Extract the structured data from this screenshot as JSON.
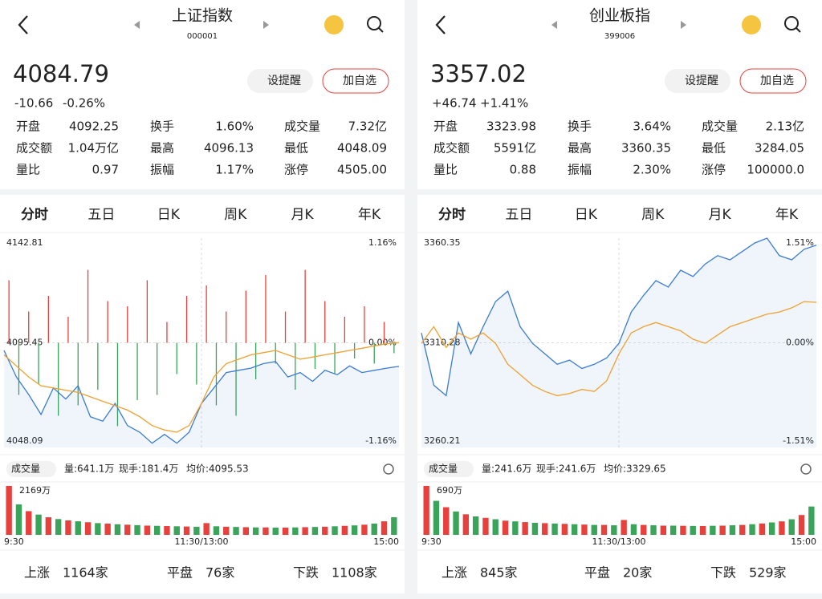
{
  "panels": [
    {
      "title": "上证指数",
      "code": "000001",
      "price": "4084.79",
      "change": "-10.66",
      "change_pct": "-0.26%",
      "trend_color": "#3aa55a",
      "buttons": [
        "设提醒",
        "加自选"
      ],
      "stats": [
        {
          "label": "开盘",
          "value": "4092.25",
          "color": "#3aa55a"
        },
        {
          "label": "换手",
          "value": "1.60%"
        },
        {
          "label": "成交量",
          "value": "7.32亿"
        },
        {
          "label": "成交额",
          "value": "1.04万亿"
        },
        {
          "label": "最高",
          "value": "4096.13",
          "color": "#e8413d"
        },
        {
          "label": "最低",
          "value": "4048.09",
          "color": "#3aa55a"
        },
        {
          "label": "量比",
          "value": "0.97"
        },
        {
          "label": "振幅",
          "value": "1.17%"
        },
        {
          "label": "涨停",
          "value": "4505.00",
          "color": "#e8413d"
        }
      ],
      "tabs": [
        "分时",
        "五日",
        "日K",
        "周K",
        "月K",
        "年K"
      ],
      "chart": {
        "type": "line",
        "ylim": [
          4048.09,
          4142.81
        ],
        "yticks": [
          4142.81,
          4095.45,
          4048.09
        ],
        "y2lim": [
          -1.16,
          1.16
        ],
        "y2ticks": [
          {
            "value": 1.16,
            "label": "1.16%"
          },
          {
            "value": 0,
            "label": "0.00%"
          },
          {
            "value": -1.16,
            "label": "-1.16%"
          }
        ],
        "series": [
          {
            "name": "价格",
            "color": "#3a7bd5",
            "values": [
              4092,
              4080,
              4072,
              4063,
              4075,
              4070,
              4076,
              4062,
              4060,
              4068,
              4058,
              4055,
              4050,
              4054,
              4050,
              4055,
              4068,
              4075,
              4082,
              4083,
              4084,
              4086,
              4087,
              4080,
              4082,
              4078,
              4083,
              4081,
              4085,
              4082,
              4083,
              4084,
              4084.79
            ]
          },
          {
            "name": "均价",
            "color": "#f0a030",
            "values": [
              4090,
              4085,
              4080,
              4076,
              4075,
              4074,
              4073,
              4071,
              4069,
              4067,
              4065,
              4062,
              4058,
              4056,
              4055,
              4058,
              4068,
              4080,
              4086,
              4088,
              4090,
              4091,
              4092,
              4090,
              4088,
              4089,
              4090,
              4091,
              4092,
              4093,
              4094,
              4095,
              4095.53
            ]
          }
        ],
        "breadth": {
          "lim": [
            -100,
            100
          ],
          "colors": [
            "#e8413d",
            "#3aa55a"
          ],
          "values": [
            60,
            -50,
            30,
            -40,
            45,
            -70,
            25,
            -60,
            70,
            -45,
            40,
            -80,
            35,
            -55,
            60,
            -50,
            20,
            -30,
            45,
            -40,
            55,
            -60,
            30,
            -70,
            50,
            -35,
            65,
            -20,
            30,
            -45,
            70,
            -25,
            40,
            -30,
            25,
            -15,
            35,
            -20,
            20,
            -10
          ]
        }
      },
      "volume_header": {
        "label": "成交量",
        "items": [
          "量:641.1万",
          "现手:181.4万",
          "均价:4095.53"
        ]
      },
      "volume": {
        "type": "bar",
        "label": "2169万",
        "ylim": [
          0,
          2169
        ],
        "bar_colors": [
          "#e8413d",
          "#3aa55a"
        ],
        "values": [
          2169,
          1350,
          1050,
          900,
          780,
          700,
          640,
          600,
          560,
          520,
          500,
          470,
          450,
          430,
          410,
          400,
          390,
          380,
          370,
          360,
          520,
          380,
          360,
          350,
          340,
          330,
          330,
          320,
          320,
          330,
          340,
          350,
          360,
          380,
          400,
          420,
          450,
          500,
          600,
          780
        ],
        "xlabels": [
          "9:30",
          "11:30/13:00",
          "15:00"
        ]
      },
      "counts": [
        {
          "label": "上涨",
          "value": "1164家",
          "color": "#e8413d"
        },
        {
          "label": "平盘",
          "value": "76家",
          "color": "#b8c4d0"
        },
        {
          "label": "下跌",
          "value": "1108家",
          "color": "#3aa55a"
        }
      ]
    },
    {
      "title": "创业板指",
      "code": "399006",
      "price": "3357.02",
      "change": "+46.74",
      "change_pct": "+1.41%",
      "trend_color": "#e8413d",
      "buttons": [
        "设提醒",
        "加自选"
      ],
      "stats": [
        {
          "label": "开盘",
          "value": "3323.98",
          "color": "#e8413d"
        },
        {
          "label": "换手",
          "value": "3.64%"
        },
        {
          "label": "成交量",
          "value": "2.13亿"
        },
        {
          "label": "成交额",
          "value": "5591亿"
        },
        {
          "label": "最高",
          "value": "3360.35",
          "color": "#e8413d"
        },
        {
          "label": "最低",
          "value": "3284.05",
          "color": "#3aa55a"
        },
        {
          "label": "量比",
          "value": "0.88"
        },
        {
          "label": "振幅",
          "value": "2.30%"
        },
        {
          "label": "涨停",
          "value": "100000.0",
          "color": "#e8413d"
        }
      ],
      "tabs": [
        "分时",
        "五日",
        "日K",
        "周K",
        "月K",
        "年K"
      ],
      "chart": {
        "type": "line",
        "ylim": [
          3260.21,
          3360.35
        ],
        "yticks": [
          3360.35,
          3310.28,
          3260.21
        ],
        "y2lim": [
          -1.51,
          1.51
        ],
        "y2ticks": [
          {
            "value": 1.51,
            "label": "1.51%"
          },
          {
            "value": 0,
            "label": "0.00%"
          },
          {
            "value": -1.51,
            "label": "-1.51%"
          }
        ],
        "series": [
          {
            "name": "价格",
            "color": "#3a7bd5",
            "values": [
              3315,
              3290,
              3285,
              3320,
              3305,
              3318,
              3330,
              3335,
              3318,
              3310,
              3305,
              3300,
              3302,
              3298,
              3300,
              3303,
              3310,
              3325,
              3333,
              3340,
              3337,
              3345,
              3342,
              3348,
              3352,
              3350,
              3354,
              3358,
              3360.35,
              3352,
              3350,
              3355,
              3357.02
            ]
          },
          {
            "name": "均价",
            "color": "#f0a030",
            "values": [
              3310,
              3318,
              3308,
              3315,
              3312,
              3315,
              3310,
              3300,
              3295,
              3290,
              3287,
              3285,
              3286,
              3288,
              3287,
              3292,
              3305,
              3315,
              3318,
              3320,
              3318,
              3316,
              3312,
              3310,
              3314,
              3318,
              3320,
              3322,
              3324,
              3325,
              3327,
              3330,
              3329.65
            ]
          }
        ]
      },
      "volume_header": {
        "label": "成交量",
        "items": [
          "量:241.6万",
          "现手:241.6万",
          "均价:3329.65"
        ]
      },
      "volume": {
        "type": "bar",
        "label": "690万",
        "ylim": [
          0,
          690
        ],
        "bar_colors": [
          "#e8413d",
          "#3aa55a"
        ],
        "values": [
          690,
          480,
          390,
          330,
          290,
          260,
          240,
          220,
          200,
          190,
          180,
          170,
          165,
          160,
          155,
          150,
          145,
          140,
          140,
          135,
          210,
          150,
          140,
          135,
          130,
          130,
          128,
          126,
          125,
          128,
          130,
          135,
          140,
          150,
          160,
          175,
          190,
          220,
          280,
          400
        ],
        "xlabels": [
          "9:30",
          "11:30/13:00",
          "15:00"
        ]
      },
      "counts": [
        {
          "label": "上涨",
          "value": "845家",
          "color": "#e8413d"
        },
        {
          "label": "平盘",
          "value": "20家",
          "color": "#b8c4d0"
        },
        {
          "label": "下跌",
          "value": "529家",
          "color": "#3aa55a"
        }
      ]
    }
  ]
}
